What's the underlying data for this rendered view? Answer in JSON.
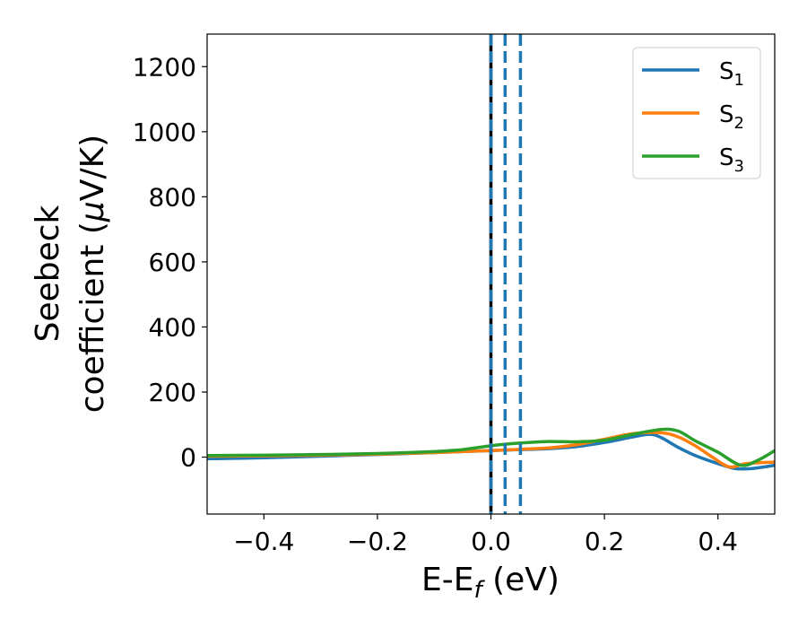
{
  "chart_data": {
    "type": "line",
    "xlabel": "E-E",
    "xlabel_sub": "f",
    "xlabel_suffix": " (eV)",
    "ylabel_line1": "Seebeck",
    "ylabel_line2_pre": "coefficient  (",
    "ylabel_mu": "μ",
    "ylabel_line2_post": "V/K)",
    "xlim": [
      -0.5,
      0.5
    ],
    "ylim": [
      -175,
      1300
    ],
    "xticks": [
      -0.4,
      -0.2,
      0.0,
      0.2,
      0.4
    ],
    "xtick_labels": [
      "−0.4",
      "−0.2",
      "0.0",
      "0.2",
      "0.4"
    ],
    "yticks": [
      0,
      200,
      400,
      600,
      800,
      1000,
      1200
    ],
    "ytick_labels": [
      "0",
      "200",
      "400",
      "600",
      "800",
      "1000",
      "1200"
    ],
    "legend_position": "top-right",
    "vlines": [
      {
        "x": 0.0,
        "color": "#000000",
        "style": "solid"
      },
      {
        "x": 0.0,
        "color": "#1f77b4",
        "style": "dashed"
      },
      {
        "x": 0.025,
        "color": "#1f77b4",
        "style": "dashed"
      },
      {
        "x": 0.052,
        "color": "#1f77b4",
        "style": "dashed"
      }
    ],
    "series": [
      {
        "name": "S",
        "name_sub": "1",
        "color": "#1f77b4",
        "x": [
          -0.5,
          -0.4,
          -0.3,
          -0.2,
          -0.1,
          0.0,
          0.05,
          0.1,
          0.15,
          0.2,
          0.25,
          0.28,
          0.3,
          0.33,
          0.36,
          0.4,
          0.43,
          0.46,
          0.5
        ],
        "y": [
          -5,
          -2,
          3,
          8,
          14,
          20,
          23,
          26,
          32,
          45,
          62,
          70,
          60,
          30,
          5,
          -20,
          -35,
          -35,
          -25
        ]
      },
      {
        "name": "S",
        "name_sub": "2",
        "color": "#ff7f0e",
        "x": [
          -0.5,
          -0.4,
          -0.3,
          -0.2,
          -0.1,
          0.0,
          0.05,
          0.1,
          0.15,
          0.2,
          0.25,
          0.3,
          0.33,
          0.36,
          0.39,
          0.42,
          0.45,
          0.5
        ],
        "y": [
          3,
          4,
          6,
          9,
          14,
          20,
          24,
          28,
          38,
          55,
          72,
          75,
          62,
          35,
          0,
          -30,
          -20,
          -15
        ]
      },
      {
        "name": "S",
        "name_sub": "3",
        "color": "#2ca02c",
        "x": [
          -0.5,
          -0.4,
          -0.3,
          -0.2,
          -0.1,
          -0.05,
          0.0,
          0.05,
          0.1,
          0.15,
          0.2,
          0.25,
          0.3,
          0.33,
          0.36,
          0.4,
          0.44,
          0.47,
          0.5
        ],
        "y": [
          5,
          6,
          8,
          11,
          17,
          23,
          35,
          43,
          48,
          47,
          52,
          70,
          85,
          80,
          50,
          15,
          -25,
          -10,
          20
        ]
      }
    ]
  }
}
